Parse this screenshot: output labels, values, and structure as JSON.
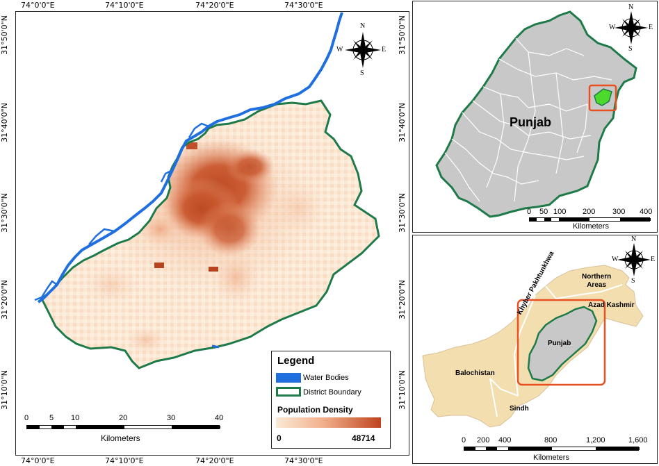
{
  "main_map": {
    "top_ticks": [
      "74°0'0\"E",
      "74°10'0\"E",
      "74°20'0\"E",
      "74°30'0\"E"
    ],
    "bottom_ticks": [
      "74°0'0\"E",
      "74°10'0\"E",
      "74°20'0\"E",
      "74°30'0\"E"
    ],
    "left_ticks": [
      "31°50'0\"N",
      "31°40'0\"N",
      "31°30'0\"N",
      "31°20'0\"N",
      "31°10'0\"N"
    ],
    "right_ticks": [
      "31°50'0\"N",
      "31°40'0\"N",
      "31°30'0\"N",
      "31°20'0\"N",
      "31°10'0\"N"
    ],
    "scale_numbers": [
      "0",
      "5",
      "10",
      "20",
      "30",
      "40"
    ],
    "scale_unit": "Kilometers",
    "compass": {
      "n": "N",
      "s": "S",
      "e": "E",
      "w": "W"
    }
  },
  "legend": {
    "title": "Legend",
    "water": "Water Bodies",
    "boundary": "District Boundary",
    "density_title": "Population Density",
    "min": "0",
    "max": "48714",
    "colors": {
      "water": "#1f6fe0",
      "boundary": "#1f7a4a",
      "low": "#fbe9d6",
      "high": "#c0431f"
    }
  },
  "punjab_map": {
    "label": "Punjab",
    "scale_numbers": [
      "0",
      "50",
      "100",
      "200",
      "300",
      "400"
    ],
    "scale_unit": "Kilometers",
    "compass": {
      "n": "N",
      "s": "S",
      "e": "E",
      "w": "W"
    }
  },
  "pakistan_map": {
    "labels": {
      "northern": "Northern\nAreas",
      "kpk": "Khyber Pakhtunkhwa",
      "ajk": "Azad Kashmir",
      "punjab": "Punjab",
      "balochistan": "Balochistan",
      "sindh": "Sindh"
    },
    "scale_numbers": [
      "0",
      "200",
      "400",
      "800",
      "1,200",
      "1,600"
    ],
    "scale_unit": "Kilometers",
    "compass": {
      "n": "N",
      "s": "S",
      "e": "E",
      "w": "W"
    }
  }
}
